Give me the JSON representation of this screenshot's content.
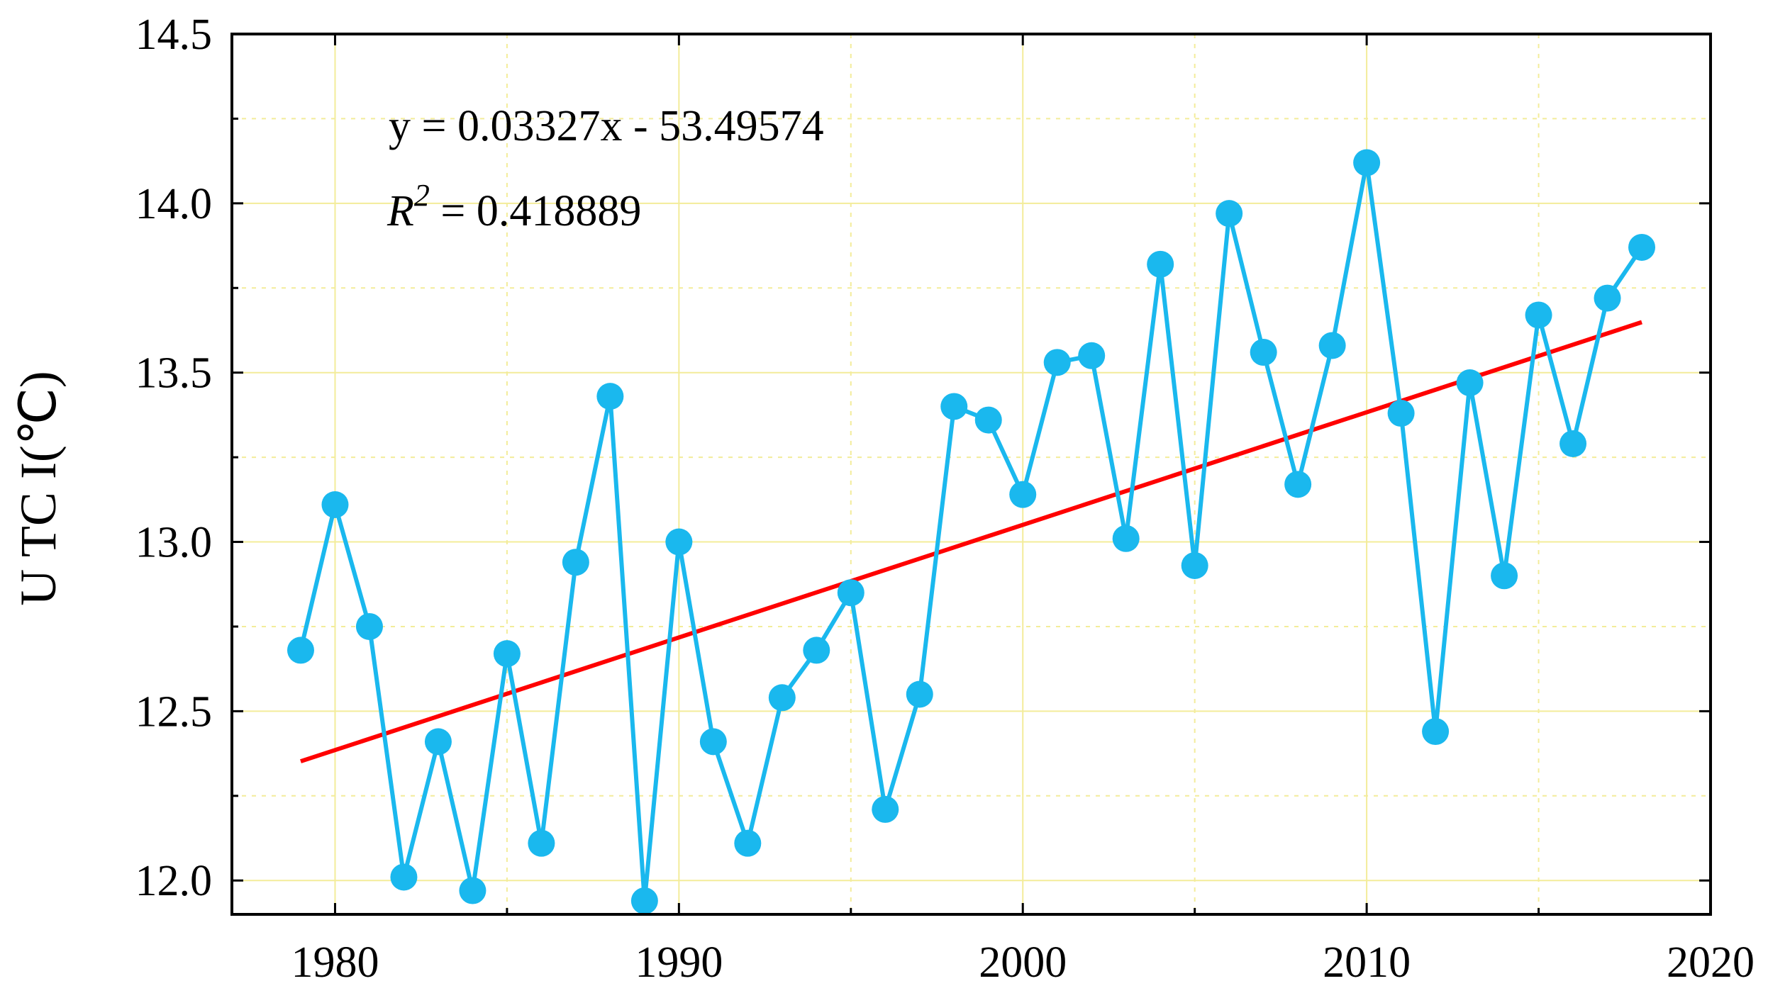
{
  "chart_data": {
    "type": "line",
    "title": "",
    "xlabel": "",
    "ylabel": "U TC I(℃)",
    "xlim": [
      1977,
      2020
    ],
    "ylim": [
      11.9,
      14.5
    ],
    "x_ticks": [
      1980,
      1990,
      2000,
      2010,
      2020
    ],
    "x_tick_labels": [
      "1980",
      "1990",
      "2000",
      "2010",
      "2020"
    ],
    "y_ticks": [
      12.0,
      12.5,
      13.0,
      13.5,
      14.0,
      14.5
    ],
    "y_tick_labels": [
      "12.0",
      "12.5",
      "13.0",
      "13.5",
      "14.0",
      "14.5"
    ],
    "x_minor_gridlines": [
      1985,
      1995,
      2005,
      2015
    ],
    "y_minor_gridlines": [
      12.25,
      12.75,
      13.25,
      13.75,
      14.25
    ],
    "grid": true,
    "series": [
      {
        "name": "UTCI",
        "color": "#1ab8ee",
        "x": [
          1979,
          1980,
          1981,
          1982,
          1983,
          1984,
          1985,
          1986,
          1987,
          1988,
          1989,
          1990,
          1991,
          1992,
          1993,
          1994,
          1995,
          1996,
          1997,
          1998,
          1999,
          2000,
          2001,
          2002,
          2003,
          2004,
          2005,
          2006,
          2007,
          2008,
          2009,
          2010,
          2011,
          2012,
          2013,
          2014,
          2015,
          2016,
          2017,
          2018
        ],
        "values": [
          12.68,
          13.11,
          12.75,
          12.01,
          12.41,
          11.97,
          12.67,
          12.11,
          12.94,
          13.43,
          11.94,
          13.0,
          12.41,
          12.11,
          12.54,
          12.68,
          12.85,
          12.21,
          12.55,
          13.4,
          13.36,
          13.14,
          13.53,
          13.55,
          13.01,
          13.82,
          12.93,
          13.97,
          13.56,
          13.17,
          13.58,
          14.12,
          13.38,
          12.44,
          13.47,
          12.9,
          13.67,
          13.29,
          13.72,
          13.87
        ]
      },
      {
        "name": "Linear fit",
        "color": "#ff0000",
        "x": [
          1979,
          2018
        ],
        "values": [
          12.352,
          13.649
        ]
      }
    ],
    "annotations": {
      "equation": "y = 0.03327x - 53.49574",
      "r2_symbol": "R",
      "r2_exponent": "2",
      "r2_value": " = 0.418889"
    }
  }
}
